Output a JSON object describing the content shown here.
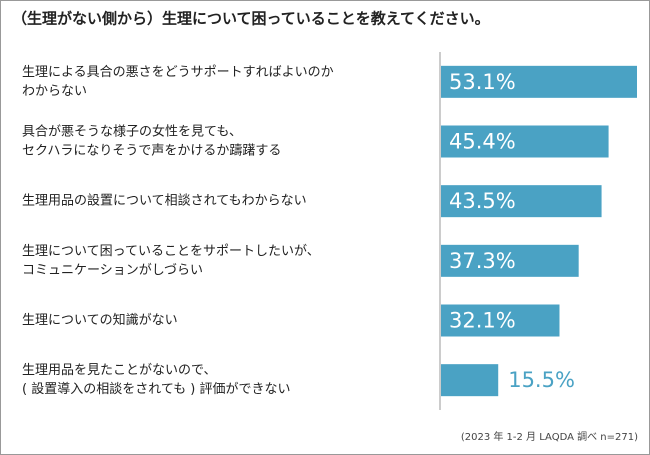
{
  "chart_data": {
    "type": "bar",
    "orientation": "horizontal",
    "title": "（生理がない側から）生理について困っていることを教えてください。",
    "categories": [
      [
        "生理による具合の悪さをどうサポートすればよいのか",
        "わからない"
      ],
      [
        "具合が悪そうな様子の女性を見ても、",
        "セクハラになりそうで声をかけるか躊躇する"
      ],
      [
        "生理用品の設置について相談されてもわからない"
      ],
      [
        "生理について困っていることをサポートしたいが、",
        "コミュニケーションがしづらい"
      ],
      [
        "生理についての知識がない"
      ],
      [
        "生理用品を見たことがないので、",
        "( 設置導入の相談をされても ) 評価ができない"
      ]
    ],
    "values": [
      53.1,
      45.4,
      43.5,
      37.3,
      32.1,
      15.5
    ],
    "value_labels": [
      "53.1%",
      "45.4%",
      "43.5%",
      "37.3%",
      "32.1%",
      "15.5%"
    ],
    "color": "#4aa2c4",
    "note": "(2023 年 1-2 月 LAQDA 調べ n=271)"
  }
}
